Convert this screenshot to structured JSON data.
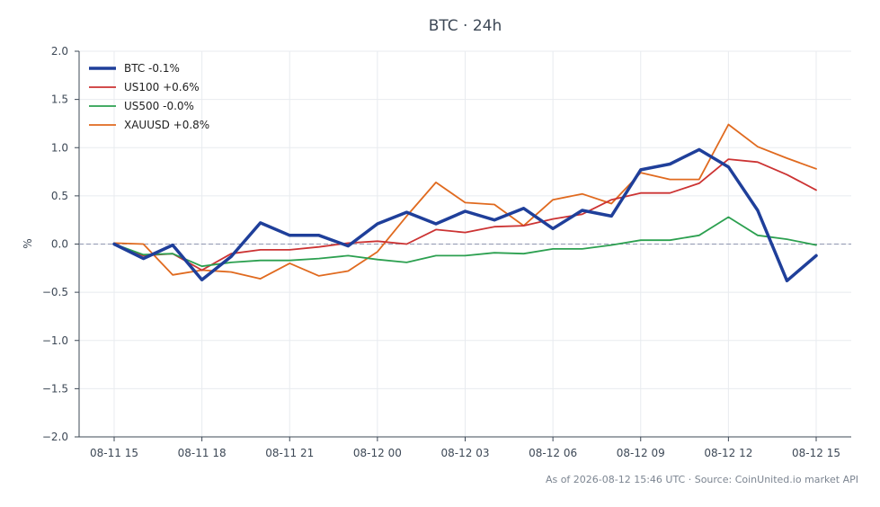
{
  "chart_data": {
    "type": "line",
    "title": "BTC · 24h",
    "xlabel": "",
    "ylabel": "%",
    "ylim": [
      -2.0,
      2.0
    ],
    "yticks": [
      "2.0",
      "1.5",
      "1.0",
      "0.5",
      "0.0",
      "−0.5",
      "−1.0",
      "−1.5",
      "−2.0"
    ],
    "ytick_values": [
      2.0,
      1.5,
      1.0,
      0.5,
      0.0,
      -0.5,
      -1.0,
      -1.5,
      -2.0
    ],
    "x": [
      "08-11 15",
      "08-11 16",
      "08-11 17",
      "08-11 18",
      "08-11 19",
      "08-11 20",
      "08-11 21",
      "08-11 22",
      "08-11 23",
      "08-12 00",
      "08-12 01",
      "08-12 02",
      "08-12 03",
      "08-12 04",
      "08-12 05",
      "08-12 06",
      "08-12 07",
      "08-12 08",
      "08-12 09",
      "08-12 10",
      "08-12 11",
      "08-12 12",
      "08-12 13",
      "08-12 14",
      "08-12 15"
    ],
    "xticks": [
      "08-11 15",
      "08-11 18",
      "08-11 21",
      "08-12 00",
      "08-12 03",
      "08-12 06",
      "08-12 09",
      "08-12 12",
      "08-12 15"
    ],
    "xtick_index": [
      0,
      3,
      6,
      9,
      12,
      15,
      18,
      21,
      24
    ],
    "grid": true,
    "legend_position": "top-left",
    "reference_line": 0.0,
    "series": [
      {
        "name": "BTC -0.1%",
        "color": "#1f3f9a",
        "width": 3.5,
        "values": [
          0.0,
          -0.15,
          -0.01,
          -0.37,
          -0.13,
          0.22,
          0.09,
          0.09,
          -0.02,
          0.21,
          0.33,
          0.21,
          0.34,
          0.25,
          0.37,
          0.16,
          0.35,
          0.29,
          0.77,
          0.83,
          0.98,
          0.8,
          0.35,
          -0.38,
          -0.12
        ]
      },
      {
        "name": "US100 +0.6%",
        "color": "#cc3333",
        "width": 1.8,
        "values": [
          0.0,
          -0.12,
          -0.1,
          -0.27,
          -0.1,
          -0.06,
          -0.06,
          -0.03,
          0.01,
          0.03,
          0.0,
          0.15,
          0.12,
          0.18,
          0.19,
          0.26,
          0.31,
          0.46,
          0.53,
          0.53,
          0.63,
          0.88,
          0.85,
          0.72,
          0.56
        ]
      },
      {
        "name": "US500 -0.0%",
        "color": "#2ca050",
        "width": 1.8,
        "values": [
          0.0,
          -0.11,
          -0.1,
          -0.23,
          -0.19,
          -0.17,
          -0.17,
          -0.15,
          -0.12,
          -0.16,
          -0.19,
          -0.12,
          -0.12,
          -0.09,
          -0.1,
          -0.05,
          -0.05,
          -0.01,
          0.04,
          0.04,
          0.09,
          0.28,
          0.09,
          0.05,
          -0.01
        ]
      },
      {
        "name": "XAUUSD +0.8%",
        "color": "#e06a1f",
        "width": 1.8,
        "values": [
          0.01,
          0.0,
          -0.32,
          -0.27,
          -0.29,
          -0.36,
          -0.2,
          -0.33,
          -0.28,
          -0.08,
          0.29,
          0.64,
          0.43,
          0.41,
          0.19,
          0.46,
          0.52,
          0.42,
          0.74,
          0.67,
          0.67,
          1.24,
          1.01,
          0.89,
          0.78
        ]
      }
    ],
    "colors": {
      "axis": "#3d4856",
      "grid": "#e8ebef",
      "zero_line": "#8f96b0"
    }
  },
  "footer": {
    "note": "As of 2026-08-12 15:46 UTC · Source: CoinUnited.io market API"
  }
}
